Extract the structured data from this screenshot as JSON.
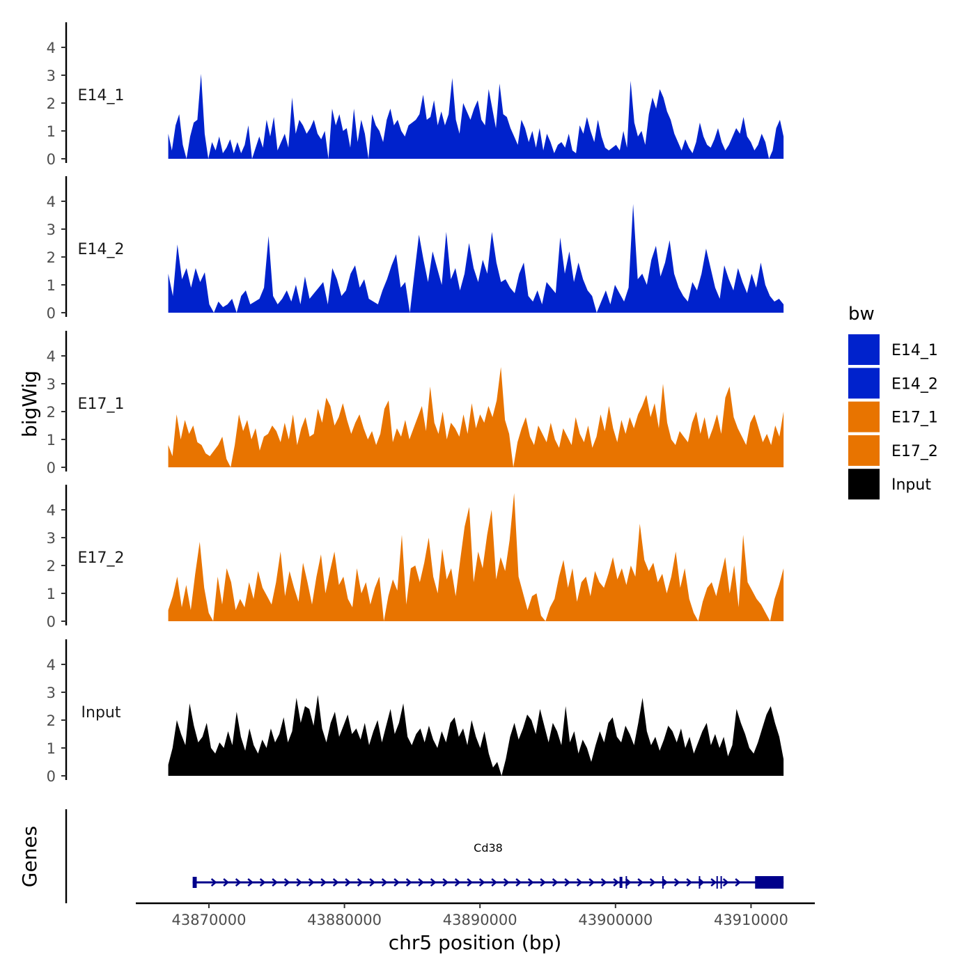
{
  "chart_data": {
    "type": "area",
    "title": "",
    "ylabel": "bigWig",
    "xlabel": "chr5 position (bp)",
    "ylim": [
      0,
      4.9
    ],
    "xlim": [
      43865500,
      43912500
    ],
    "yticks": [
      0,
      1,
      2,
      3,
      4
    ],
    "xticks": [
      43870000,
      43880000,
      43890000,
      43900000,
      43910000
    ],
    "xtick_labels": [
      "43870000",
      "43880000",
      "43890000",
      "43900000",
      "43910000"
    ],
    "track_range": [
      43867000,
      43912400
    ],
    "legend": {
      "title": "bw",
      "position": "right",
      "entries": [
        {
          "label": "E14_1",
          "color": "#0022CC"
        },
        {
          "label": "E14_2",
          "color": "#0022CC"
        },
        {
          "label": "E17_1",
          "color": "#E87400"
        },
        {
          "label": "E17_2",
          "color": "#E87400"
        },
        {
          "label": "Input",
          "color": "#000000"
        }
      ]
    },
    "series": [
      {
        "name": "E14_1",
        "color": "#0022CC",
        "values": [
          0.9,
          0.3,
          1.2,
          1.6,
          0.5,
          0,
          0.8,
          1.3,
          1.4,
          3.05,
          0.9,
          0,
          0.6,
          0.3,
          0.8,
          0.2,
          0.4,
          0.7,
          0.2,
          0.6,
          0.2,
          0.5,
          1.2,
          0,
          0.4,
          0.8,
          0.4,
          1.4,
          0.8,
          1.5,
          0.3,
          0.6,
          0.9,
          0.4,
          2.2,
          0.9,
          1.4,
          1.2,
          0.9,
          1.1,
          1.4,
          0.9,
          0.7,
          1.0,
          0,
          1.8,
          1.2,
          1.6,
          1.0,
          1.1,
          0.4,
          1.8,
          0.6,
          1.4,
          0.9,
          0,
          1.6,
          1.2,
          1.0,
          0.6,
          1.4,
          1.8,
          1.2,
          1.4,
          1.0,
          0.8,
          1.2,
          1.3,
          1.4,
          1.6,
          2.3,
          1.4,
          1.5,
          2.1,
          1.2,
          1.7,
          1.2,
          1.6,
          2.9,
          1.4,
          0.9,
          2.0,
          1.7,
          1.4,
          1.8,
          2.1,
          1.4,
          1.2,
          2.5,
          1.8,
          1.1,
          2.7,
          1.6,
          1.5,
          1.1,
          0.8,
          0.5,
          1.4,
          1.1,
          0.6,
          1.0,
          0.4,
          1.1,
          0.3,
          0.9,
          0.6,
          0.2,
          0.5,
          0.6,
          0.4,
          0.9,
          0.3,
          0.2,
          1.2,
          0.9,
          1.5,
          1.0,
          0.6,
          1.4,
          0.8,
          0.4,
          0.3,
          0.4,
          0.5,
          0.3,
          1.0,
          0.4,
          2.8,
          1.3,
          0.8,
          1.0,
          0.5,
          1.6,
          2.2,
          1.8,
          2.5,
          2.2,
          1.7,
          1.4,
          0.9,
          0.6,
          0.3,
          0.7,
          0.4,
          0.2,
          0.6,
          1.3,
          0.8,
          0.5,
          0.4,
          0.7,
          1.1,
          0.6,
          0.3,
          0.5,
          0.8,
          1.1,
          0.9,
          1.5,
          0.8,
          0.6,
          0.3,
          0.5,
          0.9,
          0.6,
          0,
          0.3,
          1.1,
          1.4,
          0.8
        ]
      },
      {
        "name": "E14_2",
        "color": "#0022CC",
        "values": [
          1.4,
          0.6,
          2.45,
          1.2,
          1.6,
          0.9,
          1.6,
          1.1,
          1.45,
          0.3,
          0,
          0.4,
          0.2,
          0.3,
          0.5,
          0,
          0.6,
          0.8,
          0.3,
          0.4,
          0.5,
          0.9,
          2.75,
          0.6,
          0.3,
          0.5,
          0.8,
          0.4,
          1.0,
          0.3,
          1.3,
          0.5,
          0.7,
          0.9,
          1.1,
          0.3,
          1.6,
          1.2,
          0.6,
          0.8,
          1.4,
          1.7,
          0.9,
          1.2,
          0.5,
          0.4,
          0.3,
          0.8,
          1.2,
          1.7,
          2.1,
          0.9,
          1.1,
          0,
          1.4,
          2.8,
          1.9,
          1.1,
          2.2,
          1.6,
          1.0,
          2.9,
          1.2,
          1.6,
          0.8,
          1.4,
          2.5,
          1.6,
          1.1,
          1.9,
          1.4,
          2.9,
          1.8,
          1.1,
          1.2,
          0.9,
          0.7,
          1.4,
          1.8,
          0.6,
          0.4,
          0.8,
          0.3,
          1.1,
          0.9,
          0.7,
          2.7,
          1.4,
          2.2,
          1.1,
          1.8,
          1.2,
          0.8,
          0.6,
          0,
          0.4,
          0.8,
          0.3,
          1.0,
          0.7,
          0.4,
          0.9,
          3.9,
          1.2,
          1.4,
          1.0,
          1.9,
          2.4,
          1.3,
          1.8,
          2.6,
          1.4,
          0.9,
          0.6,
          0.4,
          1.1,
          0.8,
          1.4,
          2.3,
          1.6,
          0.9,
          0.5,
          1.7,
          1.2,
          0.8,
          1.6,
          1.1,
          0.7,
          1.4,
          0.9,
          1.8,
          1.0,
          0.6,
          0.4,
          0.5,
          0.3
        ]
      },
      {
        "name": "E17_1",
        "color": "#E87400",
        "values": [
          0.8,
          0.4,
          1.9,
          1.0,
          1.7,
          1.2,
          1.5,
          0.9,
          0.8,
          0.5,
          0.4,
          0.6,
          0.8,
          1.1,
          0.3,
          0,
          0.8,
          1.9,
          1.3,
          1.7,
          1.0,
          1.4,
          0.6,
          1.1,
          1.2,
          1.5,
          1.3,
          0.9,
          1.6,
          1.0,
          1.9,
          0.8,
          1.4,
          1.8,
          1.1,
          1.2,
          2.1,
          1.6,
          2.5,
          2.2,
          1.5,
          1.8,
          2.3,
          1.7,
          1.2,
          1.6,
          1.9,
          1.4,
          1.0,
          1.3,
          0.8,
          1.2,
          2.1,
          2.4,
          0.9,
          1.4,
          1.1,
          1.7,
          1.0,
          1.4,
          1.8,
          2.2,
          1.3,
          2.9,
          1.6,
          1.2,
          2.0,
          1.0,
          1.6,
          1.4,
          1.1,
          1.9,
          1.2,
          2.3,
          1.4,
          1.9,
          1.6,
          2.2,
          1.8,
          2.4,
          3.6,
          1.7,
          1.2,
          0,
          0.9,
          1.4,
          1.8,
          1.1,
          0.8,
          1.5,
          1.2,
          0.9,
          1.6,
          1.0,
          0.7,
          1.4,
          1.1,
          0.8,
          1.8,
          1.2,
          0.9,
          1.5,
          0.7,
          1.1,
          1.9,
          1.3,
          2.2,
          1.4,
          0.9,
          1.7,
          1.2,
          1.8,
          1.4,
          1.9,
          2.2,
          2.6,
          1.8,
          2.3,
          1.4,
          3.0,
          1.6,
          1.0,
          0.8,
          1.3,
          1.1,
          0.9,
          1.6,
          2.0,
          1.2,
          1.8,
          1.0,
          1.4,
          1.9,
          1.2,
          2.5,
          2.9,
          1.8,
          1.4,
          1.1,
          0.8,
          1.6,
          1.9,
          1.4,
          0.9,
          1.2,
          0.8,
          1.5,
          1.1,
          2.0
        ]
      },
      {
        "name": "E17_2",
        "color": "#E87400",
        "values": [
          0.4,
          0.9,
          1.6,
          0.5,
          1.3,
          0.4,
          1.7,
          2.85,
          1.2,
          0.3,
          0,
          1.6,
          0.6,
          1.9,
          1.4,
          0.4,
          0.8,
          0.5,
          1.4,
          0.8,
          1.8,
          1.2,
          0.9,
          0.6,
          1.4,
          2.5,
          0.9,
          1.8,
          1.2,
          0.7,
          2.1,
          1.4,
          0.6,
          1.6,
          2.4,
          1.0,
          1.8,
          2.5,
          1.3,
          1.6,
          0.8,
          0.5,
          1.9,
          1.0,
          1.4,
          0.6,
          1.2,
          1.6,
          0,
          0.9,
          1.5,
          1.1,
          3.1,
          0.6,
          1.9,
          2.0,
          1.4,
          2.1,
          3.0,
          1.6,
          1.0,
          2.6,
          1.5,
          1.9,
          0.9,
          2.2,
          3.4,
          4.1,
          1.4,
          2.5,
          1.9,
          3.1,
          4.0,
          1.5,
          2.3,
          1.8,
          2.9,
          4.6,
          1.6,
          1.0,
          0.4,
          0.9,
          1.0,
          0.2,
          0,
          0.5,
          0.8,
          1.6,
          2.2,
          1.2,
          1.9,
          0.7,
          1.4,
          1.6,
          0.9,
          1.8,
          1.4,
          1.2,
          1.7,
          2.3,
          1.5,
          1.9,
          1.3,
          2.0,
          1.6,
          3.5,
          2.2,
          1.8,
          2.1,
          1.4,
          1.7,
          1.0,
          1.6,
          2.5,
          1.2,
          1.9,
          0.8,
          0.3,
          0,
          0.7,
          1.2,
          1.4,
          0.9,
          1.6,
          2.3,
          1.0,
          2.0,
          0.5,
          3.1,
          1.4,
          1.1,
          0.8,
          0.6,
          0.3,
          0,
          0.8,
          1.3,
          1.9
        ]
      },
      {
        "name": "Input",
        "color": "#000000",
        "values": [
          0.4,
          1.0,
          2.0,
          1.5,
          1.1,
          2.6,
          1.8,
          1.2,
          1.4,
          1.9,
          1.0,
          0.8,
          1.2,
          1.0,
          1.6,
          1.1,
          2.3,
          1.4,
          0.9,
          1.7,
          1.1,
          0.8,
          1.3,
          1.0,
          1.7,
          1.2,
          1.5,
          2.1,
          1.2,
          1.6,
          2.8,
          1.9,
          2.5,
          2.4,
          1.8,
          2.9,
          1.7,
          1.2,
          1.9,
          2.3,
          1.4,
          1.8,
          2.2,
          1.5,
          1.7,
          1.3,
          1.9,
          1.1,
          1.6,
          2.0,
          1.2,
          1.8,
          2.4,
          1.5,
          1.9,
          2.6,
          1.4,
          1.1,
          1.5,
          1.7,
          1.2,
          1.8,
          1.3,
          1.0,
          1.6,
          1.2,
          1.9,
          2.1,
          1.4,
          1.7,
          1.1,
          2.0,
          1.4,
          1.0,
          1.6,
          0.8,
          0.3,
          0.5,
          0,
          0.6,
          1.4,
          1.9,
          1.3,
          1.7,
          2.2,
          2.0,
          1.5,
          2.4,
          1.8,
          1.2,
          1.9,
          1.6,
          1.1,
          2.5,
          1.2,
          1.6,
          0.8,
          1.3,
          1.0,
          0.5,
          1.1,
          1.6,
          1.2,
          1.9,
          2.1,
          1.4,
          1.2,
          1.8,
          1.5,
          1.1,
          1.9,
          2.8,
          1.6,
          1.1,
          1.4,
          0.9,
          1.3,
          1.8,
          1.6,
          1.2,
          1.7,
          1.0,
          1.4,
          0.8,
          1.2,
          1.6,
          1.9,
          1.1,
          1.5,
          1.0,
          1.4,
          0.7,
          1.1,
          2.4,
          1.9,
          1.5,
          1.0,
          0.8,
          1.2,
          1.7,
          2.2,
          2.5,
          1.9,
          1.4,
          0.6
        ]
      }
    ],
    "gene_panel": {
      "label": "Genes",
      "gene_name": "Cd38",
      "gene_start": 43868800,
      "gene_end": 43912400,
      "exons": [
        [
          43868800,
          43869100
        ],
        [
          43900300,
          43900500
        ],
        [
          43910300,
          43912400
        ]
      ]
    }
  }
}
